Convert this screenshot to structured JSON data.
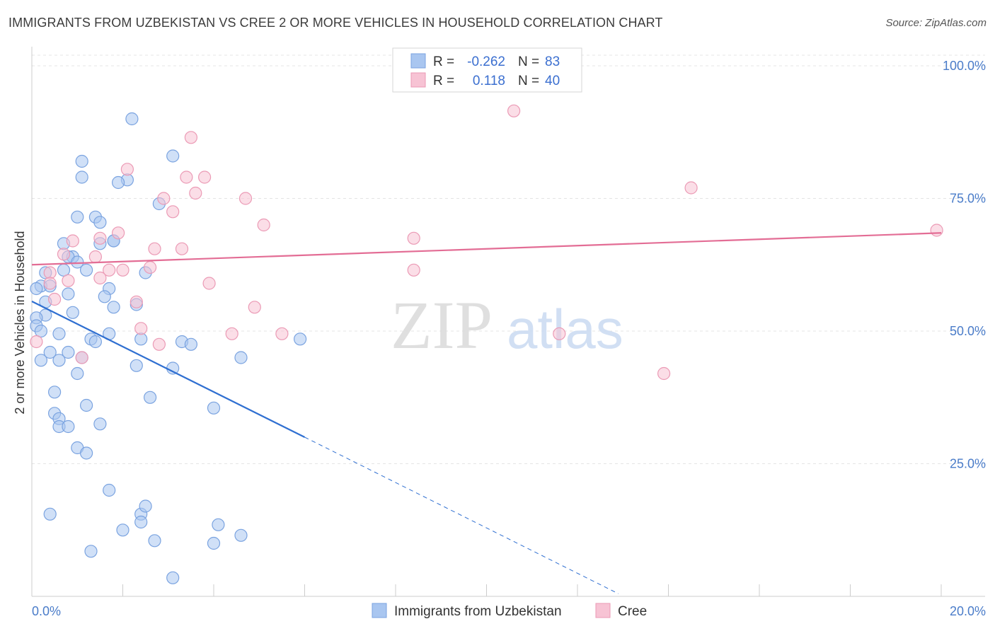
{
  "title": "IMMIGRANTS FROM UZBEKISTAN VS CREE 2 OR MORE VEHICLES IN HOUSEHOLD CORRELATION CHART",
  "source": "Source: ZipAtlas.com",
  "watermark": {
    "zip": "ZIP",
    "atlas": "atlas"
  },
  "legend": {
    "rows": [
      {
        "r_label": "R =",
        "r_value": "-0.262",
        "n_label": "N =",
        "n_value": "83"
      },
      {
        "r_label": "R =",
        "r_value": "0.118",
        "n_label": "N =",
        "n_value": "40"
      }
    ]
  },
  "chart_data": {
    "type": "scatter",
    "title": "IMMIGRANTS FROM UZBEKISTAN VS CREE 2 OR MORE VEHICLES IN HOUSEHOLD CORRELATION CHART",
    "xlabel": "",
    "ylabel": "2 or more Vehicles in Household",
    "xlim": [
      0,
      20
    ],
    "ylim": [
      0,
      102
    ],
    "x_tick_labels": [
      "0.0%",
      "20.0%"
    ],
    "y_tick_values": [
      25,
      50,
      75,
      100
    ],
    "y_tick_labels": [
      "25.0%",
      "50.0%",
      "75.0%",
      "100.0%"
    ],
    "grid": true,
    "legend_position": "top-center",
    "colors": {
      "uzbekistan_fill": "#a9c6f0",
      "uzbekistan_stroke": "#7aa3e0",
      "uzbekistan_line": "#2f6fd1",
      "cree_fill": "#f7c3d4",
      "cree_stroke": "#eb9ab5",
      "cree_line": "#e36d95",
      "legend_value": "#3b6fd0",
      "tick": "#4a7cc9"
    },
    "series": [
      {
        "name": "Immigrants from Uzbekistan",
        "r": -0.262,
        "n": 83,
        "trend": {
          "x": [
            0.0,
            6.0
          ],
          "y": [
            55.6,
            30.0
          ],
          "dashed_to": [
            12.9,
            0.5
          ]
        },
        "points": [
          [
            2.2,
            90.0
          ],
          [
            1.1,
            82.0
          ],
          [
            1.1,
            79.0
          ],
          [
            2.1,
            78.5
          ],
          [
            1.9,
            78.0
          ],
          [
            3.1,
            83.0
          ],
          [
            2.8,
            74.0
          ],
          [
            1.0,
            71.5
          ],
          [
            1.4,
            71.5
          ],
          [
            1.5,
            70.5
          ],
          [
            0.7,
            66.5
          ],
          [
            1.5,
            66.5
          ],
          [
            1.8,
            67.0
          ],
          [
            1.8,
            67.0
          ],
          [
            0.9,
            64.0
          ],
          [
            0.8,
            64.0
          ],
          [
            1.0,
            63.0
          ],
          [
            1.2,
            61.5
          ],
          [
            0.7,
            61.5
          ],
          [
            0.3,
            61.0
          ],
          [
            2.5,
            61.0
          ],
          [
            0.2,
            58.5
          ],
          [
            0.4,
            58.5
          ],
          [
            0.1,
            58.0
          ],
          [
            1.7,
            58.0
          ],
          [
            0.8,
            57.0
          ],
          [
            1.6,
            56.5
          ],
          [
            0.3,
            55.5
          ],
          [
            1.8,
            54.5
          ],
          [
            2.3,
            55.0
          ],
          [
            0.9,
            53.5
          ],
          [
            0.3,
            53.0
          ],
          [
            0.1,
            52.5
          ],
          [
            0.1,
            51.0
          ],
          [
            0.2,
            50.0
          ],
          [
            0.6,
            49.5
          ],
          [
            1.7,
            49.5
          ],
          [
            1.3,
            48.5
          ],
          [
            1.4,
            48.0
          ],
          [
            2.4,
            48.5
          ],
          [
            3.3,
            48.0
          ],
          [
            3.5,
            47.5
          ],
          [
            5.9,
            48.5
          ],
          [
            0.4,
            46.0
          ],
          [
            0.8,
            46.0
          ],
          [
            1.1,
            45.0
          ],
          [
            0.6,
            44.5
          ],
          [
            0.2,
            44.5
          ],
          [
            4.6,
            45.0
          ],
          [
            2.3,
            43.5
          ],
          [
            3.1,
            43.0
          ],
          [
            1.0,
            42.0
          ],
          [
            0.5,
            38.5
          ],
          [
            2.6,
            37.5
          ],
          [
            1.2,
            36.0
          ],
          [
            4.0,
            35.5
          ],
          [
            0.5,
            34.5
          ],
          [
            0.6,
            33.5
          ],
          [
            1.5,
            32.5
          ],
          [
            0.6,
            32.0
          ],
          [
            0.8,
            32.0
          ],
          [
            1.0,
            28.0
          ],
          [
            1.2,
            27.0
          ],
          [
            1.7,
            20.0
          ],
          [
            0.4,
            15.5
          ],
          [
            2.4,
            15.5
          ],
          [
            2.5,
            17.0
          ],
          [
            2.4,
            14.0
          ],
          [
            4.1,
            13.5
          ],
          [
            2.0,
            12.5
          ],
          [
            4.6,
            11.5
          ],
          [
            2.7,
            10.5
          ],
          [
            4.0,
            10.0
          ],
          [
            1.3,
            8.5
          ],
          [
            3.1,
            3.5
          ]
        ]
      },
      {
        "name": "Cree",
        "r": 0.118,
        "n": 40,
        "trend": {
          "x": [
            0.0,
            20.0
          ],
          "y": [
            62.5,
            68.5
          ]
        },
        "points": [
          [
            10.6,
            91.5
          ],
          [
            3.5,
            86.5
          ],
          [
            2.1,
            80.5
          ],
          [
            3.4,
            79.0
          ],
          [
            3.8,
            79.0
          ],
          [
            14.5,
            77.0
          ],
          [
            3.6,
            76.0
          ],
          [
            2.9,
            75.0
          ],
          [
            4.7,
            75.0
          ],
          [
            3.1,
            72.5
          ],
          [
            5.1,
            70.0
          ],
          [
            1.9,
            68.5
          ],
          [
            8.4,
            67.5
          ],
          [
            1.5,
            67.5
          ],
          [
            0.9,
            67.0
          ],
          [
            2.7,
            65.5
          ],
          [
            3.3,
            65.5
          ],
          [
            0.7,
            64.5
          ],
          [
            1.4,
            64.0
          ],
          [
            2.6,
            62.0
          ],
          [
            1.7,
            61.5
          ],
          [
            2.0,
            61.5
          ],
          [
            8.4,
            61.5
          ],
          [
            0.4,
            61.0
          ],
          [
            1.5,
            60.0
          ],
          [
            0.8,
            59.5
          ],
          [
            3.9,
            59.0
          ],
          [
            0.4,
            59.0
          ],
          [
            0.5,
            56.0
          ],
          [
            2.3,
            55.5
          ],
          [
            4.9,
            54.5
          ],
          [
            2.4,
            50.5
          ],
          [
            4.4,
            49.5
          ],
          [
            5.5,
            49.5
          ],
          [
            11.6,
            49.5
          ],
          [
            0.1,
            48.0
          ],
          [
            2.8,
            47.5
          ],
          [
            1.1,
            45.0
          ],
          [
            13.9,
            42.0
          ],
          [
            19.9,
            69.0
          ]
        ]
      }
    ]
  }
}
